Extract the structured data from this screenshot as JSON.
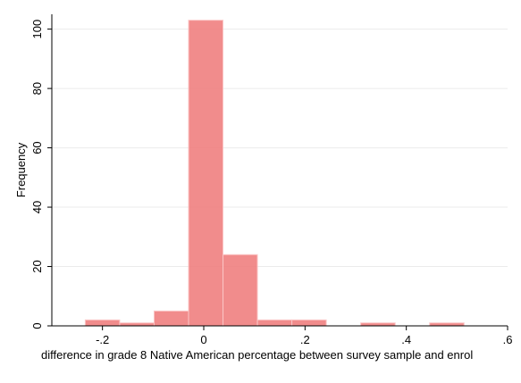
{
  "chart_data": {
    "type": "bar",
    "title": "",
    "xlabel": "difference in grade 8 Native American percentage between survey sample and enrol",
    "ylabel": "Frequency",
    "xlim": [
      -0.3,
      0.6
    ],
    "ylim": [
      0,
      105
    ],
    "grid": true,
    "x_ticks": [
      {
        "value": -0.2,
        "label": "-.2"
      },
      {
        "value": 0,
        "label": "0"
      },
      {
        "value": 0.2,
        "label": ".2"
      },
      {
        "value": 0.4,
        "label": ".4"
      },
      {
        "value": 0.6,
        "label": ".6"
      }
    ],
    "y_ticks": [
      {
        "value": 0,
        "label": "0"
      },
      {
        "value": 20,
        "label": "20"
      },
      {
        "value": 40,
        "label": "40"
      },
      {
        "value": 60,
        "label": "60"
      },
      {
        "value": 80,
        "label": "80"
      },
      {
        "value": 100,
        "label": "100"
      }
    ],
    "bins": [
      {
        "start": -0.234,
        "end": -0.166,
        "count": 2
      },
      {
        "start": -0.166,
        "end": -0.098,
        "count": 1
      },
      {
        "start": -0.098,
        "end": -0.03,
        "count": 5
      },
      {
        "start": -0.03,
        "end": 0.038,
        "count": 103
      },
      {
        "start": 0.038,
        "end": 0.106,
        "count": 24
      },
      {
        "start": 0.106,
        "end": 0.174,
        "count": 2
      },
      {
        "start": 0.174,
        "end": 0.242,
        "count": 2
      },
      {
        "start": 0.31,
        "end": 0.378,
        "count": 1
      },
      {
        "start": 0.446,
        "end": 0.514,
        "count": 1
      }
    ],
    "bar_color": "#f08080"
  }
}
